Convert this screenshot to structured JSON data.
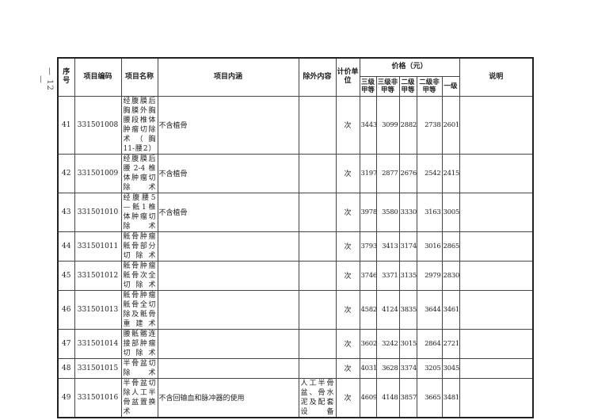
{
  "page_number": "— 12 —",
  "headers": {
    "no": "序号",
    "code": "项目编码",
    "name": "项目名称",
    "content": "项目内涵",
    "excluded": "除外内容",
    "unit": "计价单位",
    "price": "价格（元）",
    "p1": "三级甲等",
    "p2": "三级非甲等",
    "p3": "二级甲等",
    "p4": "二级非甲等",
    "p5": "一级",
    "note": "说明"
  },
  "rows": [
    {
      "no": "41",
      "code": "331501008",
      "name": "经腹膜后胸膜外胸腰段椎体肿瘤切除术（胸11-腰2）",
      "content": "不含植骨",
      "excluded": "",
      "unit": "次",
      "prices": [
        "3443",
        "3099",
        "2882",
        "2738",
        "2601"
      ],
      "note": ""
    },
    {
      "no": "42",
      "code": "331501009",
      "name": "经腹膜后腰2-4椎体肿瘤切除术",
      "content": "不含植骨",
      "excluded": "",
      "unit": "次",
      "prices": [
        "3197",
        "2877",
        "2676",
        "2542",
        "2415"
      ],
      "note": ""
    },
    {
      "no": "43",
      "code": "331501010",
      "name": "经腹腰5—骶1椎体肿瘤切除术",
      "content": "不含植骨",
      "excluded": "",
      "unit": "次",
      "prices": [
        "3978",
        "3580",
        "3330",
        "3163",
        "3005"
      ],
      "note": ""
    },
    {
      "no": "44",
      "code": "331501011",
      "name": "骶骨肿瘤骶骨部分切除术",
      "content": "",
      "excluded": "",
      "unit": "次",
      "prices": [
        "3793",
        "3413",
        "3174",
        "3016",
        "2865"
      ],
      "note": ""
    },
    {
      "no": "45",
      "code": "331501012",
      "name": "骶骨肿瘤骶骨次全切除术",
      "content": "",
      "excluded": "",
      "unit": "次",
      "prices": [
        "3746",
        "3371",
        "3135",
        "2979",
        "2830"
      ],
      "note": ""
    },
    {
      "no": "46",
      "code": "331501013",
      "name": "骶骨肿瘤骶骨全切除及骶骨重建术",
      "content": "",
      "excluded": "",
      "unit": "次",
      "prices": [
        "4582",
        "4124",
        "3835",
        "3644",
        "3461"
      ],
      "note": ""
    },
    {
      "no": "47",
      "code": "331501014",
      "name": "腰骶髂连接部肿瘤切除术",
      "content": "",
      "excluded": "",
      "unit": "次",
      "prices": [
        "3602",
        "3242",
        "3015",
        "2864",
        "2721"
      ],
      "note": ""
    },
    {
      "no": "48",
      "code": "331501015",
      "name": "半骨盆切除术",
      "content": "",
      "excluded": "",
      "unit": "次",
      "prices": [
        "4031",
        "3628",
        "3374",
        "3205",
        "3045"
      ],
      "note": ""
    },
    {
      "no": "49",
      "code": "331501016",
      "name": "半骨盆切除人工半骨盆置换术",
      "content": "不含回输血和脉冲器的使用",
      "excluded": "人工半骨盆、骨水泥及配套设备",
      "unit": "次",
      "prices": [
        "4609",
        "4148",
        "3857",
        "3665",
        "3481"
      ],
      "note": ""
    }
  ]
}
